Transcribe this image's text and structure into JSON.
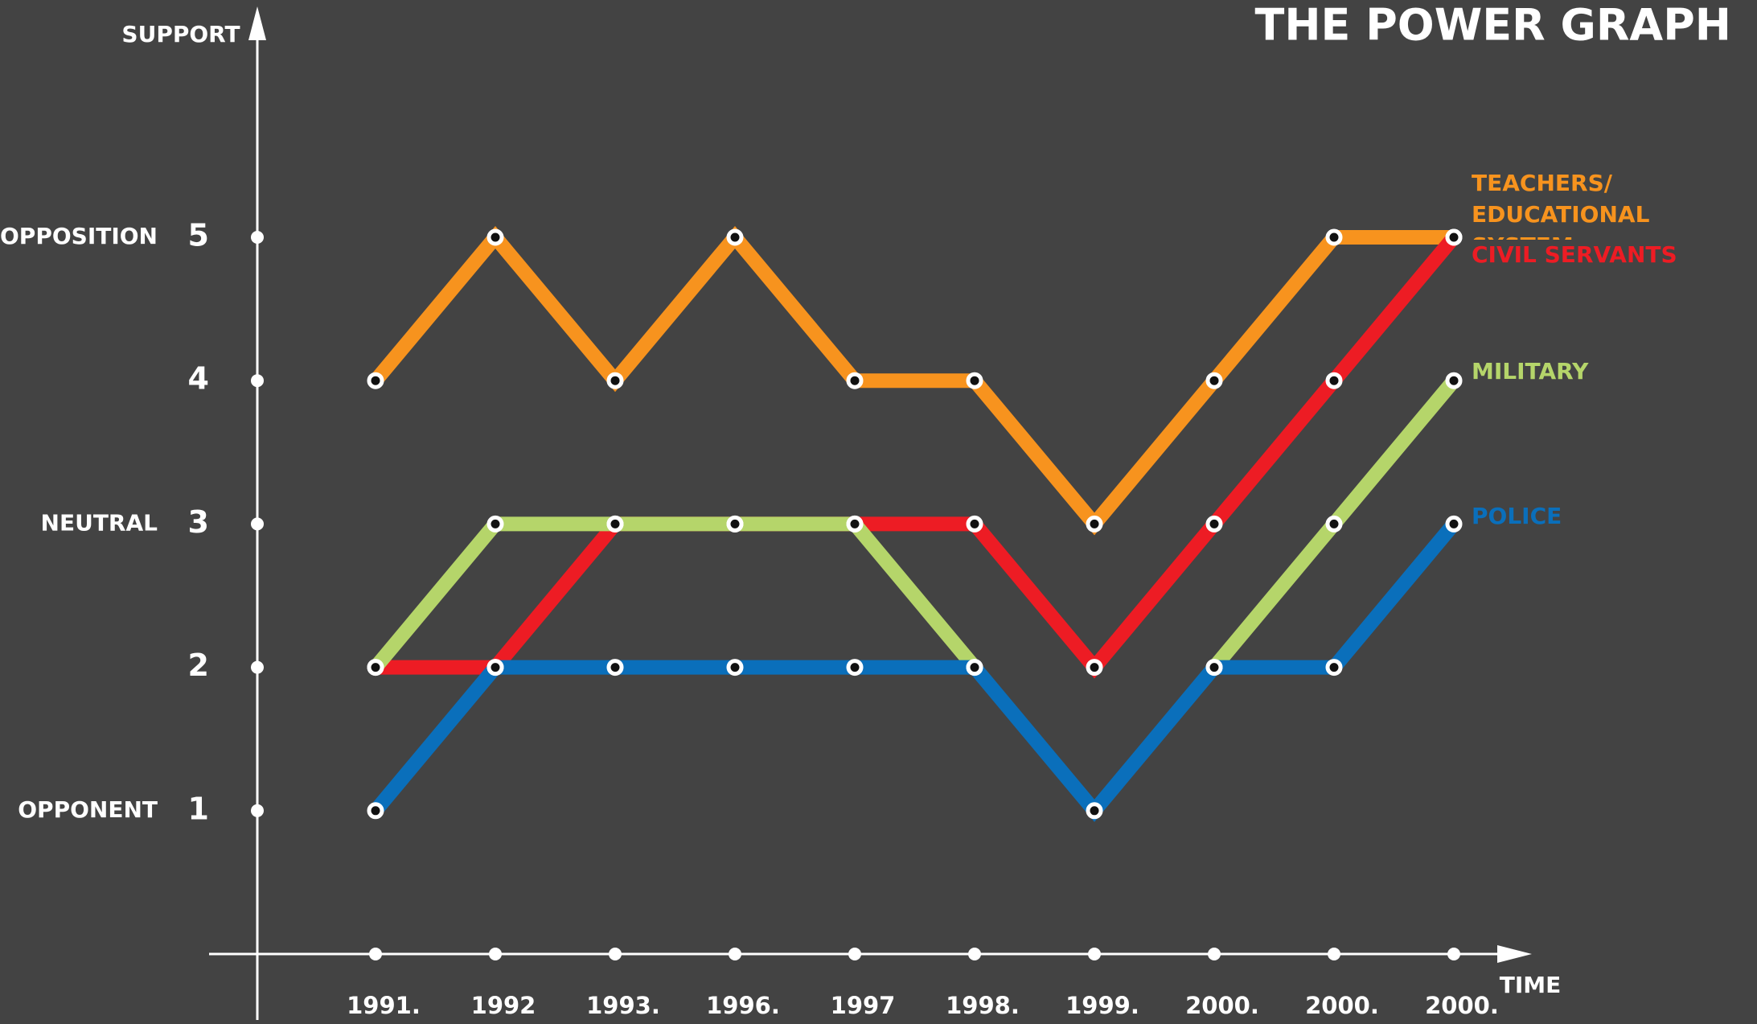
{
  "chart_data": {
    "type": "line",
    "title": "THE POWER GRAPH",
    "y_axis_label": "SUPPORT",
    "x_axis_label": "TIME",
    "categories": [
      "1991.",
      "1992",
      "1993.",
      "1996.",
      "1997",
      "1998.",
      "1999.",
      "2000.",
      "2000.",
      "2000."
    ],
    "ylim": [
      0,
      5
    ],
    "yticks": [
      1,
      2,
      3,
      4,
      5
    ],
    "y_level_names": [
      {
        "value": 1,
        "label": "OPPONENT"
      },
      {
        "value": 3,
        "label": "NEUTRAL"
      },
      {
        "value": 5,
        "label": "OPPOSITION"
      }
    ],
    "series": [
      {
        "name": "TEACHERS/ EDUCATIONAL SYSTEM",
        "color": "#f7931e",
        "values": [
          4,
          5,
          4,
          5,
          4,
          4,
          3,
          4,
          5,
          5
        ]
      },
      {
        "name": "CIVIL SERVANTS",
        "color": "#ed1c24",
        "values": [
          2,
          2,
          3,
          3,
          3,
          3,
          2,
          3,
          4,
          5
        ]
      },
      {
        "name": "MILITARY",
        "color": "#b5d56a",
        "values": [
          2,
          3,
          3,
          3,
          3,
          2,
          null,
          2,
          3,
          4
        ]
      },
      {
        "name": "POLICE",
        "color": "#0a6fbb",
        "values": [
          1,
          2,
          2,
          2,
          2,
          2,
          1,
          2,
          2,
          3
        ]
      }
    ]
  }
}
